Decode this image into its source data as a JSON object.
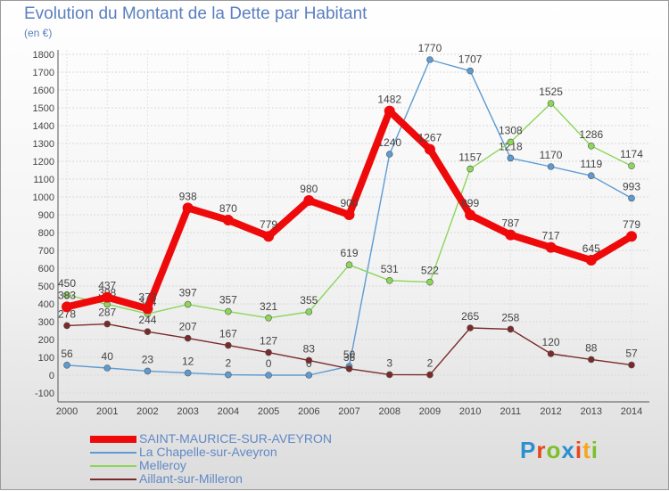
{
  "title": "Evolution du Montant de la Dette par Habitant",
  "subtitle": "(en €)",
  "logo": {
    "text": "Proxiti",
    "colors": [
      "#2d8fcf",
      "#e8461e",
      "#7cbf2a",
      "#2d8fcf",
      "#e8461e",
      "#f2a81d",
      "#7cbf2a"
    ]
  },
  "chart_data": {
    "type": "line",
    "x": [
      "2000",
      "2001",
      "2002",
      "2003",
      "2004",
      "2005",
      "2006",
      "2007",
      "2008",
      "2009",
      "2010",
      "2011",
      "2012",
      "2013",
      "2014"
    ],
    "ylim": [
      -100,
      1800
    ],
    "yticks": [
      "-100",
      "0",
      "100",
      "200",
      "300",
      "400",
      "500",
      "600",
      "700",
      "800",
      "900",
      "1000",
      "1100",
      "1200",
      "1300",
      "1400",
      "1500",
      "1600",
      "1700",
      "1800"
    ],
    "grid": true,
    "legend_position": "bottom-left",
    "series": [
      {
        "name": "SAINT-MAURICE-SUR-AVEYRON",
        "color": "#ee0a0a",
        "emphasis": true,
        "values": [
          383,
          437,
          373,
          938,
          870,
          779,
          980,
          900,
          1482,
          1267,
          899,
          787,
          717,
          645,
          779
        ]
      },
      {
        "name": "La Chapelle-sur-Aveyron",
        "color": "#5d9bd2",
        "emphasis": false,
        "values": [
          56,
          40,
          23,
          12,
          2,
          0,
          0,
          50,
          1240,
          1770,
          1707,
          1218,
          1170,
          1119,
          993
        ]
      },
      {
        "name": "Melleroy",
        "color": "#8cd65a",
        "emphasis": false,
        "values": [
          450,
          398,
          344,
          397,
          357,
          321,
          355,
          619,
          531,
          522,
          1157,
          1308,
          1525,
          1286,
          1174
        ]
      },
      {
        "name": "Aillant-sur-Milleron",
        "color": "#7a2a2a",
        "emphasis": false,
        "values": [
          278,
          287,
          244,
          207,
          167,
          127,
          83,
          36,
          3,
          2,
          265,
          258,
          120,
          88,
          57
        ]
      }
    ]
  }
}
